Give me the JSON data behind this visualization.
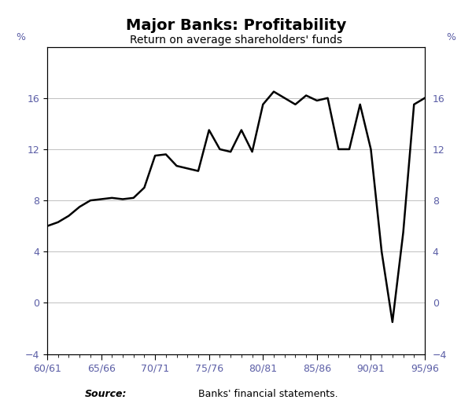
{
  "title": "Major Banks: Profitability",
  "subtitle": "Return on average shareholders' funds",
  "ylabel_left": "%",
  "ylabel_right": "%",
  "source_label": "Source:",
  "source_text": "Banks' financial statements.",
  "x_labels": [
    "60/61",
    "65/66",
    "70/71",
    "75/76",
    "80/81",
    "85/86",
    "90/91",
    "95/96"
  ],
  "x_tick_positions": [
    0,
    5,
    10,
    15,
    20,
    25,
    30,
    35
  ],
  "ylim": [
    -4,
    20
  ],
  "yticks": [
    -4,
    0,
    4,
    8,
    12,
    16
  ],
  "line_color": "#000000",
  "line_width": 1.8,
  "background_color": "#ffffff",
  "title_fontsize": 14,
  "subtitle_fontsize": 10,
  "tick_label_color": "#5b5ea6",
  "years": [
    0,
    1,
    2,
    3,
    4,
    5,
    6,
    7,
    8,
    9,
    10,
    11,
    12,
    13,
    14,
    15,
    16,
    17,
    18,
    19,
    20,
    21,
    22,
    23,
    24,
    25,
    26,
    27,
    28,
    29,
    30,
    31,
    32,
    33,
    34,
    35
  ],
  "values": [
    6.0,
    6.3,
    6.8,
    7.5,
    8.0,
    8.1,
    8.2,
    8.1,
    8.2,
    9.0,
    11.5,
    11.6,
    10.7,
    10.5,
    10.3,
    13.5,
    12.0,
    11.8,
    13.5,
    11.8,
    15.5,
    16.5,
    16.0,
    15.5,
    16.2,
    15.8,
    16.0,
    12.0,
    12.0,
    15.5,
    12.0,
    4.0,
    -1.5,
    5.5,
    15.5,
    16.0
  ]
}
